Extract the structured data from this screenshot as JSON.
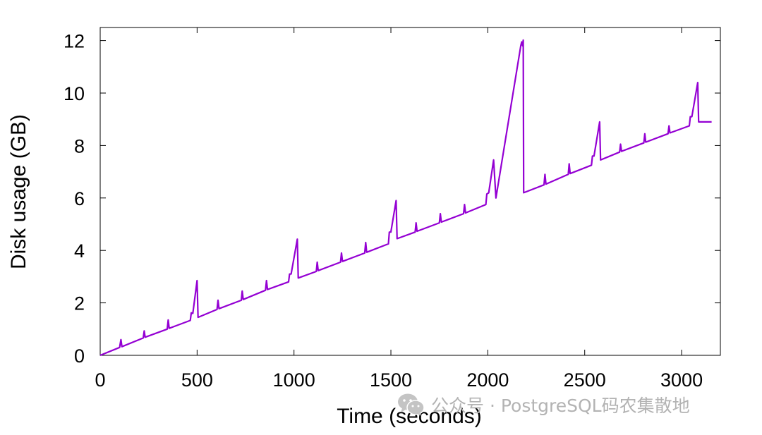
{
  "chart_data": {
    "type": "line",
    "xlabel": "Time (seconds)",
    "ylabel": "Disk usage (GB)",
    "xlim": [
      0,
      3200
    ],
    "ylim": [
      0,
      12.5
    ],
    "x_ticks": [
      0,
      500,
      1000,
      1500,
      2000,
      2500,
      3000
    ],
    "x_tick_labels": [
      "0",
      "500",
      "1000",
      "1500",
      "2000",
      "2500",
      "3000"
    ],
    "y_ticks": [
      0,
      2,
      4,
      6,
      8,
      10,
      12
    ],
    "y_tick_labels": [
      "0",
      "2",
      "4",
      "6",
      "8",
      "10",
      "12"
    ],
    "grid": false,
    "legend": "none",
    "color": "#9400D3",
    "series": [
      {
        "points": [
          [
            0,
            0
          ],
          [
            100,
            0.3
          ],
          [
            107,
            0.6
          ],
          [
            112,
            0.33
          ],
          [
            222,
            0.66
          ],
          [
            227,
            0.93
          ],
          [
            232,
            0.69
          ],
          [
            346,
            1.0
          ],
          [
            351,
            1.35
          ],
          [
            356,
            1.03
          ],
          [
            465,
            1.33
          ],
          [
            470,
            1.62
          ],
          [
            478,
            1.6
          ],
          [
            500,
            2.85
          ],
          [
            505,
            1.45
          ],
          [
            603,
            1.75
          ],
          [
            608,
            2.1
          ],
          [
            613,
            1.78
          ],
          [
            728,
            2.1
          ],
          [
            733,
            2.45
          ],
          [
            738,
            2.13
          ],
          [
            853,
            2.48
          ],
          [
            858,
            2.85
          ],
          [
            863,
            2.51
          ],
          [
            972,
            2.8
          ],
          [
            977,
            3.1
          ],
          [
            985,
            3.1
          ],
          [
            1017,
            4.43
          ],
          [
            1022,
            2.95
          ],
          [
            1115,
            3.2
          ],
          [
            1120,
            3.55
          ],
          [
            1125,
            3.23
          ],
          [
            1240,
            3.55
          ],
          [
            1245,
            3.9
          ],
          [
            1250,
            3.58
          ],
          [
            1365,
            3.9
          ],
          [
            1370,
            4.3
          ],
          [
            1375,
            3.93
          ],
          [
            1487,
            4.25
          ],
          [
            1492,
            4.7
          ],
          [
            1500,
            4.7
          ],
          [
            1527,
            5.9
          ],
          [
            1532,
            4.45
          ],
          [
            1625,
            4.7
          ],
          [
            1630,
            5.05
          ],
          [
            1635,
            4.73
          ],
          [
            1750,
            5.05
          ],
          [
            1755,
            5.4
          ],
          [
            1760,
            5.08
          ],
          [
            1875,
            5.4
          ],
          [
            1880,
            5.75
          ],
          [
            1885,
            5.43
          ],
          [
            1990,
            5.75
          ],
          [
            1995,
            6.15
          ],
          [
            2005,
            6.2
          ],
          [
            2030,
            7.45
          ],
          [
            2042,
            6.0
          ],
          [
            2170,
            11.8
          ],
          [
            2175,
            11.95
          ],
          [
            2180,
            11.8
          ],
          [
            2183,
            12.02
          ],
          [
            2185,
            6.2
          ],
          [
            2290,
            6.5
          ],
          [
            2295,
            6.9
          ],
          [
            2300,
            6.53
          ],
          [
            2415,
            6.9
          ],
          [
            2420,
            7.3
          ],
          [
            2425,
            6.93
          ],
          [
            2535,
            7.25
          ],
          [
            2540,
            7.6
          ],
          [
            2548,
            7.6
          ],
          [
            2577,
            8.9
          ],
          [
            2582,
            7.45
          ],
          [
            2680,
            7.75
          ],
          [
            2685,
            8.05
          ],
          [
            2690,
            7.78
          ],
          [
            2805,
            8.1
          ],
          [
            2810,
            8.45
          ],
          [
            2815,
            8.13
          ],
          [
            2930,
            8.45
          ],
          [
            2935,
            8.75
          ],
          [
            2940,
            8.48
          ],
          [
            3040,
            8.75
          ],
          [
            3045,
            9.1
          ],
          [
            3053,
            9.1
          ],
          [
            3083,
            10.4
          ],
          [
            3088,
            8.9
          ],
          [
            3155,
            8.9
          ]
        ]
      }
    ]
  },
  "watermark": {
    "icon": "wechat-icon",
    "text": "公众号 · PostgreSQL码农集散地"
  }
}
